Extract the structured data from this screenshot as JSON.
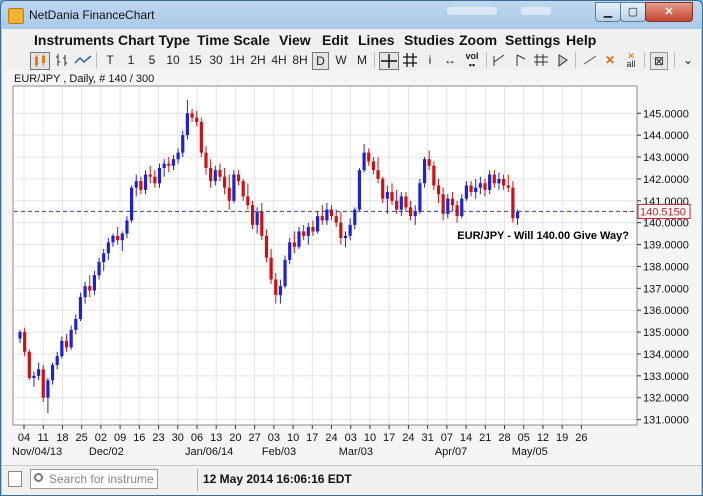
{
  "window": {
    "title": "NetDania FinanceChart"
  },
  "menu": [
    "Instruments",
    "Chart Type",
    "Time Scale",
    "View",
    "Edit",
    "Lines",
    "Studies",
    "Zoom",
    "Settings",
    "Help"
  ],
  "toolbar": {
    "timeframes": [
      "T",
      "1",
      "5",
      "10",
      "15",
      "30",
      "1H",
      "2H",
      "4H",
      "8H",
      "D",
      "W",
      "M"
    ],
    "selected_timeframe": "D",
    "vol_label": "vol",
    "all_label": "all"
  },
  "chart_header": "EUR/JPY , Daily, # 140 / 300",
  "search": {
    "placeholder": "Search for instrument"
  },
  "status": {
    "datetime": "12 May 2014 16:06:16 EDT"
  },
  "chart_data": {
    "type": "candlestick",
    "instrument": "EUR/JPY",
    "period": "Daily",
    "annotation": "EUR/JPY - Will 140.00 Give Way?",
    "last_price": "140.5150",
    "last_price_value": 140.515,
    "ylim": [
      130.8,
      146.2
    ],
    "y_ticks": [
      "131.0000",
      "132.0000",
      "133.0000",
      "134.0000",
      "135.0000",
      "136.0000",
      "137.0000",
      "138.0000",
      "139.0000",
      "140.0000",
      "141.0000",
      "142.0000",
      "143.0000",
      "144.0000",
      "145.0000"
    ],
    "x_ticks": [
      "04",
      "11",
      "18",
      "25",
      "02",
      "09",
      "16",
      "23",
      "30",
      "06",
      "13",
      "20",
      "27",
      "03",
      "10",
      "17",
      "24",
      "03",
      "10",
      "17",
      "24",
      "31",
      "07",
      "14",
      "21",
      "28",
      "05",
      "12",
      "19",
      "26"
    ],
    "x_month_labels": [
      "Nov/04/13",
      "Dec/02",
      "Jan/06/14",
      "Feb/03",
      "Mar/03",
      "Apr/07",
      "May/05"
    ],
    "x_month_label_index": [
      0,
      4,
      9,
      13,
      17,
      22,
      26
    ],
    "grid": true,
    "candles": [
      [
        134.7,
        135.1,
        134.5,
        135.0
      ],
      [
        135.0,
        135.2,
        133.9,
        134.1
      ],
      [
        134.1,
        134.2,
        132.8,
        132.9
      ],
      [
        132.9,
        133.2,
        132.5,
        133.0
      ],
      [
        133.0,
        133.6,
        132.8,
        133.3
      ],
      [
        133.3,
        133.5,
        131.8,
        132.0
      ],
      [
        132.0,
        132.9,
        131.3,
        132.8
      ],
      [
        132.8,
        133.6,
        132.6,
        133.5
      ],
      [
        133.5,
        134.1,
        133.3,
        133.9
      ],
      [
        133.9,
        134.8,
        133.8,
        134.6
      ],
      [
        134.6,
        134.9,
        134.1,
        134.3
      ],
      [
        134.3,
        135.3,
        134.2,
        135.1
      ],
      [
        135.1,
        135.8,
        134.9,
        135.6
      ],
      [
        135.6,
        136.8,
        135.5,
        136.6
      ],
      [
        136.6,
        137.3,
        136.3,
        137.1
      ],
      [
        137.1,
        137.6,
        136.6,
        136.9
      ],
      [
        136.9,
        137.8,
        136.7,
        137.6
      ],
      [
        137.6,
        138.4,
        137.4,
        138.2
      ],
      [
        138.2,
        138.8,
        137.8,
        138.6
      ],
      [
        138.6,
        139.3,
        138.3,
        139.1
      ],
      [
        139.1,
        139.5,
        138.9,
        139.4
      ],
      [
        139.4,
        139.8,
        139.0,
        139.2
      ],
      [
        139.2,
        139.6,
        138.7,
        139.5
      ],
      [
        139.5,
        140.3,
        139.3,
        140.1
      ],
      [
        140.1,
        141.7,
        140.0,
        141.6
      ],
      [
        141.6,
        142.2,
        141.2,
        141.9
      ],
      [
        141.9,
        142.1,
        141.3,
        141.5
      ],
      [
        141.5,
        142.4,
        141.3,
        142.2
      ],
      [
        142.2,
        142.6,
        141.8,
        142.1
      ],
      [
        142.1,
        142.4,
        141.6,
        141.8
      ],
      [
        141.8,
        142.7,
        141.6,
        142.5
      ],
      [
        142.5,
        142.9,
        142.1,
        142.7
      ],
      [
        142.7,
        143.0,
        142.3,
        142.6
      ],
      [
        142.6,
        143.1,
        142.4,
        142.9
      ],
      [
        142.9,
        143.4,
        142.7,
        143.2
      ],
      [
        143.2,
        144.2,
        143.0,
        144.0
      ],
      [
        144.0,
        145.6,
        143.8,
        145.0
      ],
      [
        145.0,
        145.2,
        144.6,
        144.8
      ],
      [
        144.8,
        145.1,
        144.4,
        144.6
      ],
      [
        144.6,
        144.8,
        143.0,
        143.2
      ],
      [
        143.2,
        143.5,
        142.2,
        142.5
      ],
      [
        142.5,
        142.9,
        141.6,
        141.9
      ],
      [
        141.9,
        142.6,
        141.7,
        142.4
      ],
      [
        142.4,
        142.7,
        141.9,
        142.1
      ],
      [
        142.1,
        142.5,
        141.3,
        141.6
      ],
      [
        141.6,
        142.2,
        140.6,
        141.0
      ],
      [
        141.0,
        142.4,
        140.9,
        142.2
      ],
      [
        142.2,
        142.4,
        141.7,
        141.9
      ],
      [
        141.9,
        142.0,
        141.0,
        141.2
      ],
      [
        141.2,
        141.8,
        140.6,
        140.8
      ],
      [
        140.8,
        141.0,
        139.7,
        139.9
      ],
      [
        139.9,
        140.7,
        139.5,
        140.5
      ],
      [
        140.5,
        140.9,
        139.2,
        139.4
      ],
      [
        139.4,
        139.7,
        138.2,
        138.4
      ],
      [
        138.4,
        138.8,
        137.2,
        137.4
      ],
      [
        137.4,
        137.7,
        136.3,
        136.7
      ],
      [
        136.7,
        137.4,
        136.3,
        137.1
      ],
      [
        137.1,
        138.5,
        137.0,
        138.3
      ],
      [
        138.3,
        139.3,
        138.1,
        139.1
      ],
      [
        139.1,
        139.6,
        138.6,
        138.9
      ],
      [
        138.9,
        139.8,
        138.8,
        139.6
      ],
      [
        139.6,
        139.9,
        139.2,
        139.4
      ],
      [
        139.4,
        140.0,
        139.0,
        139.8
      ],
      [
        139.8,
        140.1,
        139.4,
        139.6
      ],
      [
        139.6,
        140.5,
        139.5,
        140.3
      ],
      [
        140.3,
        140.8,
        139.9,
        140.1
      ],
      [
        140.1,
        140.9,
        139.9,
        140.6
      ],
      [
        140.6,
        140.8,
        140.1,
        140.3
      ],
      [
        140.3,
        140.6,
        139.8,
        140.0
      ],
      [
        140.0,
        140.5,
        139.0,
        139.3
      ],
      [
        139.3,
        139.6,
        138.9,
        139.4
      ],
      [
        139.4,
        140.2,
        139.2,
        139.9
      ],
      [
        139.9,
        140.7,
        139.7,
        140.6
      ],
      [
        140.6,
        142.5,
        140.5,
        142.4
      ],
      [
        142.4,
        143.6,
        142.3,
        143.2
      ],
      [
        143.2,
        143.4,
        142.6,
        142.8
      ],
      [
        142.8,
        143.0,
        142.2,
        142.4
      ],
      [
        142.4,
        143.0,
        141.8,
        142.0
      ],
      [
        142.0,
        142.1,
        140.9,
        141.1
      ],
      [
        141.1,
        141.7,
        140.4,
        141.4
      ],
      [
        141.4,
        141.8,
        140.8,
        141.0
      ],
      [
        141.0,
        141.5,
        140.4,
        140.6
      ],
      [
        140.6,
        141.4,
        140.3,
        141.2
      ],
      [
        141.2,
        141.4,
        140.5,
        140.7
      ],
      [
        140.7,
        141.0,
        140.1,
        140.3
      ],
      [
        140.3,
        140.8,
        139.9,
        140.5
      ],
      [
        140.5,
        142.0,
        140.4,
        141.8
      ],
      [
        141.8,
        143.0,
        141.6,
        142.9
      ],
      [
        142.9,
        143.3,
        142.4,
        142.6
      ],
      [
        142.6,
        142.8,
        141.5,
        141.7
      ],
      [
        141.7,
        142.0,
        140.9,
        141.3
      ],
      [
        141.3,
        141.6,
        140.1,
        140.4
      ],
      [
        140.4,
        141.3,
        140.2,
        141.1
      ],
      [
        141.1,
        141.4,
        140.5,
        140.8
      ],
      [
        140.8,
        141.0,
        140.0,
        140.3
      ],
      [
        140.3,
        141.3,
        140.2,
        141.1
      ],
      [
        141.1,
        141.9,
        141.0,
        141.7
      ],
      [
        141.7,
        141.9,
        141.2,
        141.4
      ],
      [
        141.4,
        142.0,
        141.1,
        141.6
      ],
      [
        141.6,
        142.1,
        141.3,
        141.8
      ],
      [
        141.8,
        142.0,
        141.2,
        141.5
      ],
      [
        141.5,
        142.4,
        141.3,
        142.2
      ],
      [
        142.2,
        142.4,
        141.6,
        141.8
      ],
      [
        141.8,
        142.3,
        141.5,
        142.0
      ],
      [
        142.0,
        142.2,
        141.5,
        141.7
      ],
      [
        141.7,
        142.2,
        141.4,
        141.6
      ],
      [
        141.6,
        141.9,
        140.0,
        140.2
      ],
      [
        140.2,
        140.6,
        139.9,
        140.5
      ]
    ]
  },
  "colors": {
    "up": "#2222cc",
    "down": "#cc1111",
    "grid": "#e4e4e4",
    "price_line": "#2f3fa0",
    "annotation": "#000000"
  }
}
